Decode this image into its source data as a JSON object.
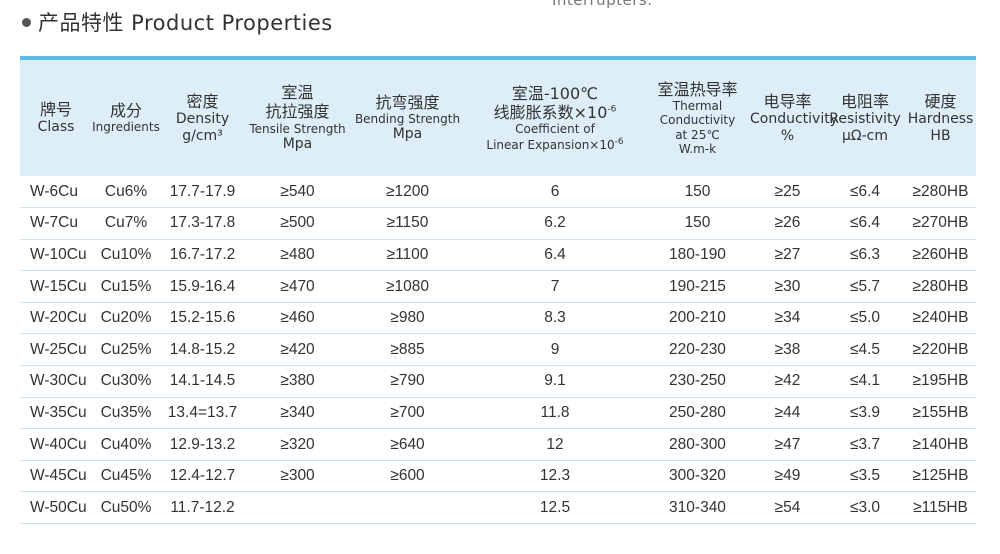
{
  "top_cut_text": "Interrupters.",
  "heading": "产品特性 Product Properties",
  "columns": [
    {
      "zh": "牌号",
      "en": "Class"
    },
    {
      "zh": "成分",
      "en": "Ingredients"
    },
    {
      "zh": "密度",
      "en": "Density",
      "unit": "g/cm³"
    },
    {
      "zh": "室温",
      "zh2": "抗拉强度",
      "en": "Tensile Strength",
      "unit": "Mpa"
    },
    {
      "zh": "抗弯强度",
      "en": "Bending Strength",
      "unit": "Mpa"
    },
    {
      "zh": "室温-100℃",
      "zh2": "线膨胀系数×10",
      "sup": "-6",
      "en": "Coefficient of",
      "en2": "Linear Expansion×10",
      "en2_sup": "-6"
    },
    {
      "zh": "室温热导率",
      "en": "Thermal Conductivity",
      "en2": "at 25℃",
      "unit": "W.m-k"
    },
    {
      "zh": "电导率",
      "en": "Conductivity",
      "unit": "%"
    },
    {
      "zh": "电阻率",
      "en": "Resistivity",
      "unit": "μΩ-cm"
    },
    {
      "zh": "硬度",
      "en": "Hardness",
      "unit": "HB"
    }
  ],
  "rows": [
    [
      "W-6Cu",
      "Cu6%",
      "17.7-17.9",
      "≥540",
      "≥1200",
      "6",
      "150",
      "≥25",
      "≤6.4",
      "≥280HB"
    ],
    [
      "W-7Cu",
      "Cu7%",
      "17.3-17.8",
      "≥500",
      "≥1150",
      "6.2",
      "150",
      "≥26",
      "≤6.4",
      "≥270HB"
    ],
    [
      "W-10Cu",
      "Cu10%",
      "16.7-17.2",
      "≥480",
      "≥1100",
      "6.4",
      "180-190",
      "≥27",
      "≤6.3",
      "≥260HB"
    ],
    [
      "W-15Cu",
      "Cu15%",
      "15.9-16.4",
      "≥470",
      "≥1080",
      "7",
      "190-215",
      "≥30",
      "≤5.7",
      "≥280HB"
    ],
    [
      "W-20Cu",
      "Cu20%",
      "15.2-15.6",
      "≥460",
      "≥980",
      "8.3",
      "200-210",
      "≥34",
      "≤5.0",
      "≥240HB"
    ],
    [
      "W-25Cu",
      "Cu25%",
      "14.8-15.2",
      "≥420",
      "≥885",
      "9",
      "220-230",
      "≥38",
      "≤4.5",
      "≥220HB"
    ],
    [
      "W-30Cu",
      "Cu30%",
      "14.1-14.5",
      "≥380",
      "≥790",
      "9.1",
      "230-250",
      "≥42",
      "≤4.1",
      "≥195HB"
    ],
    [
      "W-35Cu",
      "Cu35%",
      "13.4=13.7",
      "≥340",
      "≥700",
      "11.8",
      "250-280",
      "≥44",
      "≤3.9",
      "≥155HB"
    ],
    [
      "W-40Cu",
      "Cu40%",
      "12.9-13.2",
      "≥320",
      "≥640",
      "12",
      "280-300",
      "≥47",
      "≤3.7",
      "≥140HB"
    ],
    [
      "W-45Cu",
      "Cu45%",
      "12.4-12.7",
      "≥300",
      "≥600",
      "12.3",
      "300-320",
      "≥49",
      "≤3.5",
      "≥125HB"
    ],
    [
      "W-50Cu",
      "Cu50%",
      "11.7-12.2",
      "",
      "",
      "12.5",
      "310-340",
      "≥54",
      "≤3.0",
      "≥115HB"
    ]
  ]
}
